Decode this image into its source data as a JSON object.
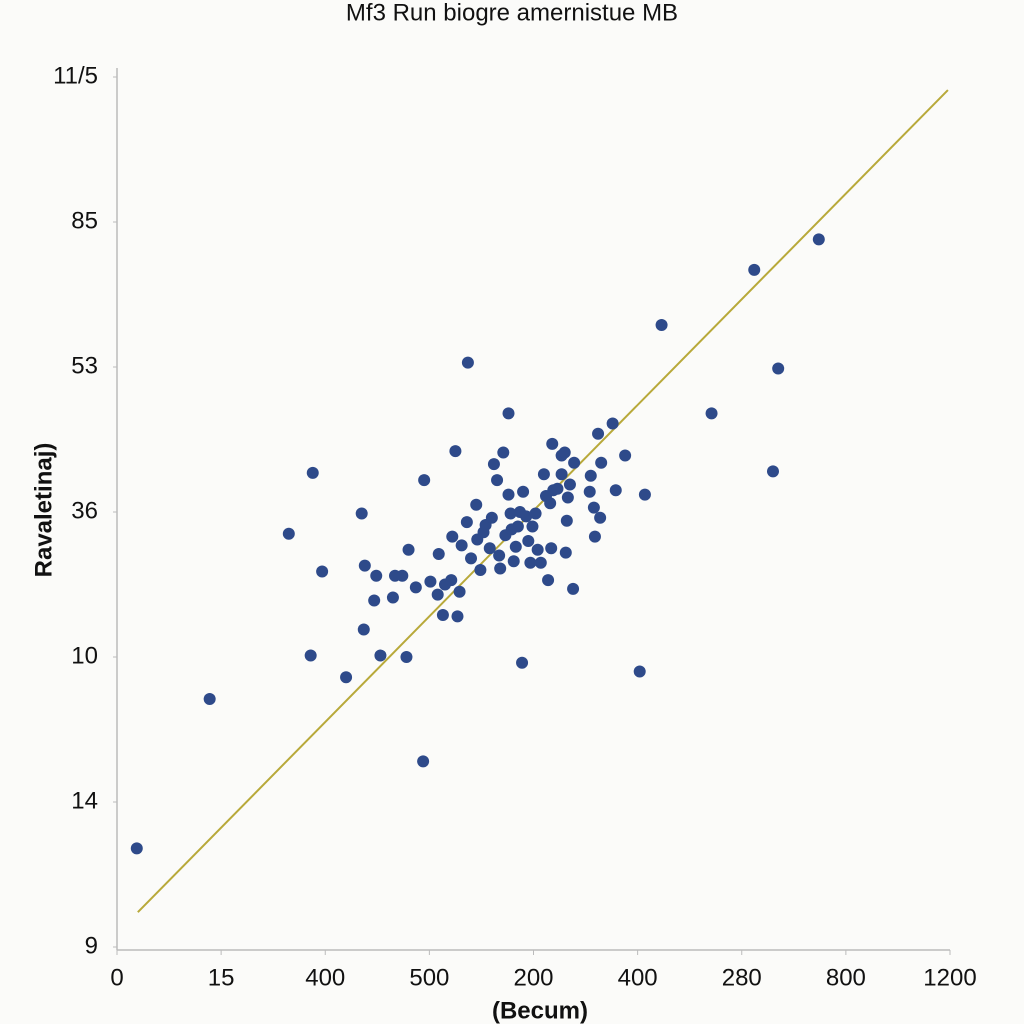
{
  "chart_data": {
    "type": "scatter",
    "title": "Mf3 Run biogre amernistue MB",
    "x_label": "(Becum)",
    "y_label": "Ravaletinaj)",
    "xlim": [
      0,
      8
    ],
    "ylim": [
      0,
      6
    ],
    "xticks": [
      0,
      {
        "value": 1,
        "label": "15"
      },
      {
        "value": 2,
        "label": "400"
      },
      {
        "value": 3,
        "label": "500"
      },
      {
        "value": 4,
        "label": "200"
      },
      {
        "value": 5,
        "label": "400"
      },
      {
        "value": 6,
        "label": "280"
      },
      {
        "value": 7,
        "label": "800"
      },
      {
        "value": 8,
        "label": "1200"
      }
    ],
    "yticks": [
      {
        "value": 0,
        "label": "9"
      },
      {
        "value": 1,
        "label": "14"
      },
      {
        "value": 2,
        "label": "10"
      },
      {
        "value": 3,
        "label": "36"
      },
      {
        "value": 4,
        "label": "53"
      },
      {
        "value": 5,
        "label": "85"
      },
      {
        "value": 6,
        "label": "11/5"
      }
    ],
    "color": "#2e4a8a",
    "trend_line": {
      "x": [
        0.2,
        7.98
      ],
      "y": [
        0.24,
        5.91
      ],
      "color": "#b8a93a"
    },
    "x": [
      0.19,
      0.89,
      1.65,
      1.88,
      1.97,
      1.86,
      2.2,
      2.35,
      2.38,
      2.37,
      2.47,
      2.49,
      2.53,
      2.67,
      2.65,
      2.74,
      2.78,
      2.8,
      2.87,
      2.94,
      2.95,
      3.01,
      3.08,
      3.09,
      3.13,
      3.15,
      3.22,
      3.21,
      3.25,
      3.27,
      3.29,
      3.31,
      3.37,
      3.36,
      3.4,
      3.45,
      3.46,
      3.49,
      3.52,
      3.54,
      3.58,
      3.6,
      3.62,
      3.65,
      3.67,
      3.68,
      3.71,
      3.73,
      3.76,
      3.76,
      3.78,
      3.79,
      3.81,
      3.83,
      3.85,
      3.87,
      3.89,
      3.9,
      3.93,
      3.95,
      3.97,
      3.99,
      4.02,
      4.04,
      4.07,
      4.1,
      4.12,
      4.14,
      4.16,
      4.17,
      4.18,
      4.19,
      4.23,
      4.27,
      4.27,
      4.3,
      4.31,
      4.32,
      4.33,
      4.35,
      4.38,
      4.39,
      4.54,
      4.55,
      4.58,
      4.59,
      4.62,
      4.64,
      4.65,
      4.76,
      4.79,
      4.88,
      5.02,
      5.07,
      5.23,
      5.71,
      6.12,
      6.3,
      6.35,
      6.74
    ],
    "values": [
      0.68,
      1.71,
      2.85,
      3.27,
      2.59,
      2.01,
      1.86,
      2.99,
      2.63,
      2.19,
      2.39,
      2.56,
      2.01,
      2.56,
      2.41,
      2.56,
      2.0,
      2.74,
      2.48,
      1.28,
      3.22,
      2.52,
      2.43,
      2.71,
      2.29,
      2.5,
      2.83,
      2.53,
      3.42,
      2.28,
      2.45,
      2.77,
      4.03,
      2.93,
      2.68,
      3.05,
      2.81,
      2.6,
      2.86,
      2.91,
      2.75,
      2.96,
      3.33,
      3.22,
      2.7,
      2.61,
      3.41,
      2.84,
      3.68,
      3.12,
      2.99,
      2.88,
      2.66,
      2.76,
      2.9,
      3.0,
      1.96,
      3.14,
      2.97,
      2.8,
      2.65,
      2.9,
      2.99,
      2.74,
      2.65,
      3.26,
      3.11,
      2.53,
      3.06,
      2.75,
      3.47,
      3.15,
      3.16,
      3.26,
      3.39,
      3.41,
      2.72,
      2.94,
      3.1,
      3.19,
      2.47,
      3.34,
      3.14,
      3.25,
      3.03,
      2.83,
      3.54,
      2.96,
      3.34,
      3.61,
      3.15,
      3.39,
      1.9,
      3.12,
      4.29,
      3.68,
      4.67,
      3.28,
      3.99,
      4.88
    ]
  }
}
